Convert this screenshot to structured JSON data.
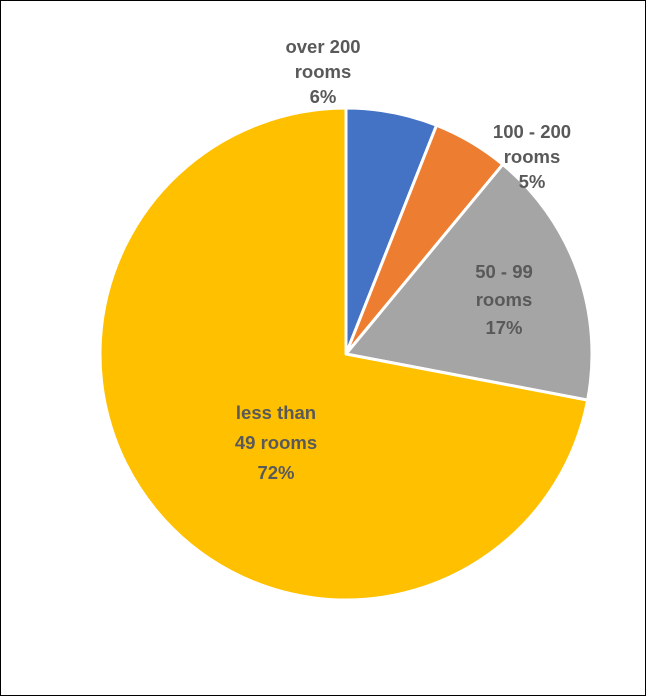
{
  "chart_data": {
    "type": "pie",
    "title": "",
    "start_angle_deg": 0,
    "direction": "clockwise",
    "slices": [
      {
        "label_lines": [
          "over 200",
          "rooms"
        ],
        "percent_label": "6%",
        "value": 6,
        "color": "#4472C4"
      },
      {
        "label_lines": [
          "100 - 200",
          "rooms"
        ],
        "percent_label": "5%",
        "value": 5,
        "color": "#ED7D31"
      },
      {
        "label_lines": [
          "50 - 99",
          "rooms"
        ],
        "percent_label": "17%",
        "value": 17,
        "color": "#A5A5A5"
      },
      {
        "label_lines": [
          "less than",
          "49 rooms"
        ],
        "percent_label": "72%",
        "value": 72,
        "color": "#FFC000"
      }
    ],
    "slice_border_color": "#FFFFFF",
    "label_color": "#595959",
    "legend": "none"
  }
}
